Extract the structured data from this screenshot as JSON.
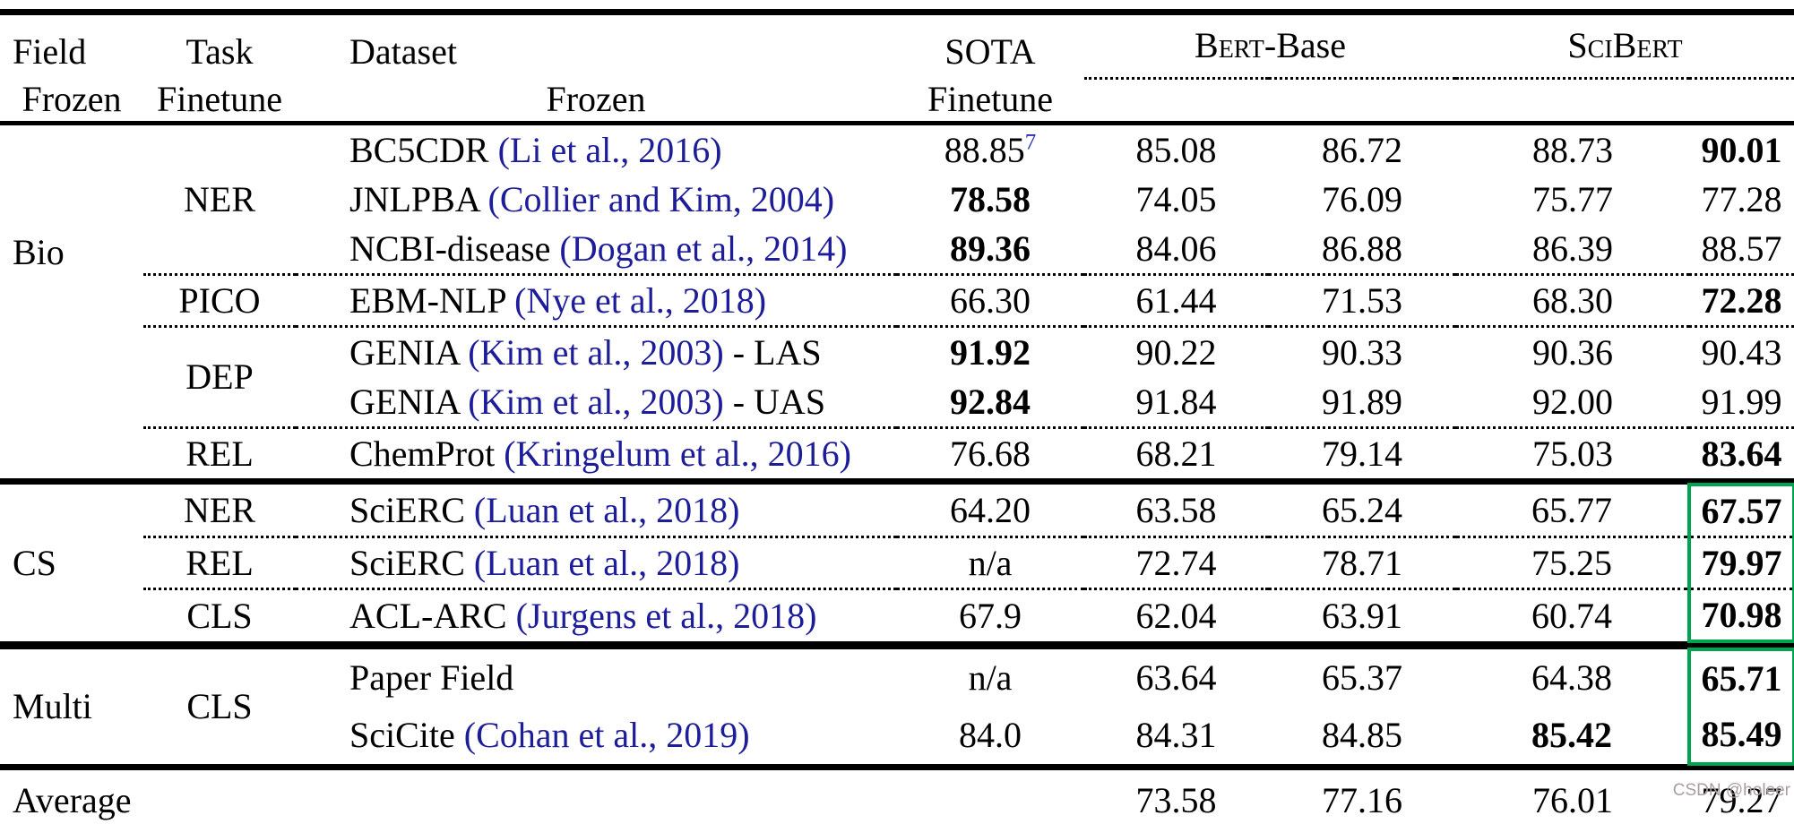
{
  "header": {
    "field": "Field",
    "task": "Task",
    "dataset": "Dataset",
    "sota": "SOTA",
    "groups": [
      {
        "sc": "Bert",
        "rest": "-Base"
      },
      {
        "sc": "SciBert",
        "rest": ""
      }
    ],
    "subcols": [
      "Frozen",
      "Finetune",
      "Frozen",
      "Finetune"
    ]
  },
  "sections": [
    {
      "field": "Bio",
      "rows": [
        {
          "task": "NER",
          "dataset": "BC5CDR ",
          "cite": "(Li et al., 2016)",
          "suffix": "",
          "sota": "88.85",
          "sup": "7",
          "v": [
            "85.08",
            "86.72",
            "88.73",
            "90.01"
          ]
        },
        {
          "dataset": "JNLPBA ",
          "cite": "(Collier and Kim, 2004)",
          "suffix": "",
          "sota": "78.58",
          "v": [
            "74.05",
            "76.09",
            "75.77",
            "77.28"
          ]
        },
        {
          "dataset": "NCBI-disease ",
          "cite": "(Dogan et al., 2014)",
          "suffix": "",
          "sota": "89.36",
          "v": [
            "84.06",
            "86.88",
            "86.39",
            "88.57"
          ]
        },
        {
          "task": "PICO",
          "dataset": "EBM-NLP ",
          "cite": "(Nye et al., 2018)",
          "suffix": "",
          "sota": "66.30",
          "v": [
            "61.44",
            "71.53",
            "68.30",
            "72.28"
          ]
        },
        {
          "task": "DEP",
          "dataset": "GENIA ",
          "cite": "(Kim et al., 2003)",
          "suffix": " - LAS",
          "sota": "91.92",
          "v": [
            "90.22",
            "90.33",
            "90.36",
            "90.43"
          ]
        },
        {
          "dataset": "GENIA ",
          "cite": "(Kim et al., 2003)",
          "suffix": " - UAS",
          "sota": "92.84",
          "v": [
            "91.84",
            "91.89",
            "92.00",
            "91.99"
          ]
        },
        {
          "task": "REL",
          "dataset": "ChemProt ",
          "cite": "(Kringelum et al., 2016)",
          "suffix": "",
          "sota": "76.68",
          "v": [
            "68.21",
            "79.14",
            "75.03",
            "83.64"
          ]
        }
      ]
    },
    {
      "field": "CS",
      "rows": [
        {
          "task": "NER",
          "dataset": "SciERC ",
          "cite": "(Luan et al., 2018)",
          "suffix": "",
          "sota": "64.20",
          "v": [
            "63.58",
            "65.24",
            "65.77",
            "67.57"
          ]
        },
        {
          "task": "REL",
          "dataset": "SciERC ",
          "cite": "(Luan et al., 2018)",
          "suffix": "",
          "sota": "n/a",
          "v": [
            "72.74",
            "78.71",
            "75.25",
            "79.97"
          ]
        },
        {
          "task": "CLS",
          "dataset": "ACL-ARC ",
          "cite": "(Jurgens et al., 2018)",
          "suffix": "",
          "sota": "67.9",
          "v": [
            "62.04",
            "63.91",
            "60.74",
            "70.98"
          ]
        }
      ]
    },
    {
      "field": "Multi",
      "rows": [
        {
          "task": "CLS",
          "dataset": "Paper Field",
          "cite": "",
          "suffix": "",
          "sota": "n/a",
          "v": [
            "63.64",
            "65.37",
            "64.38",
            "65.71"
          ]
        },
        {
          "dataset": "SciCite ",
          "cite": "(Cohan et al., 2019)",
          "suffix": "",
          "sota": "84.0",
          "v": [
            "84.31",
            "84.85",
            "85.42",
            "85.49"
          ]
        }
      ]
    }
  ],
  "average": {
    "label": "Average",
    "v": [
      "73.58",
      "77.16",
      "76.01",
      "79.27"
    ]
  },
  "watermark": "CSDN @holeer",
  "colors": {
    "citation": "#1d1d9a",
    "highlight_box": "#00A44F",
    "rule": "#000000"
  }
}
